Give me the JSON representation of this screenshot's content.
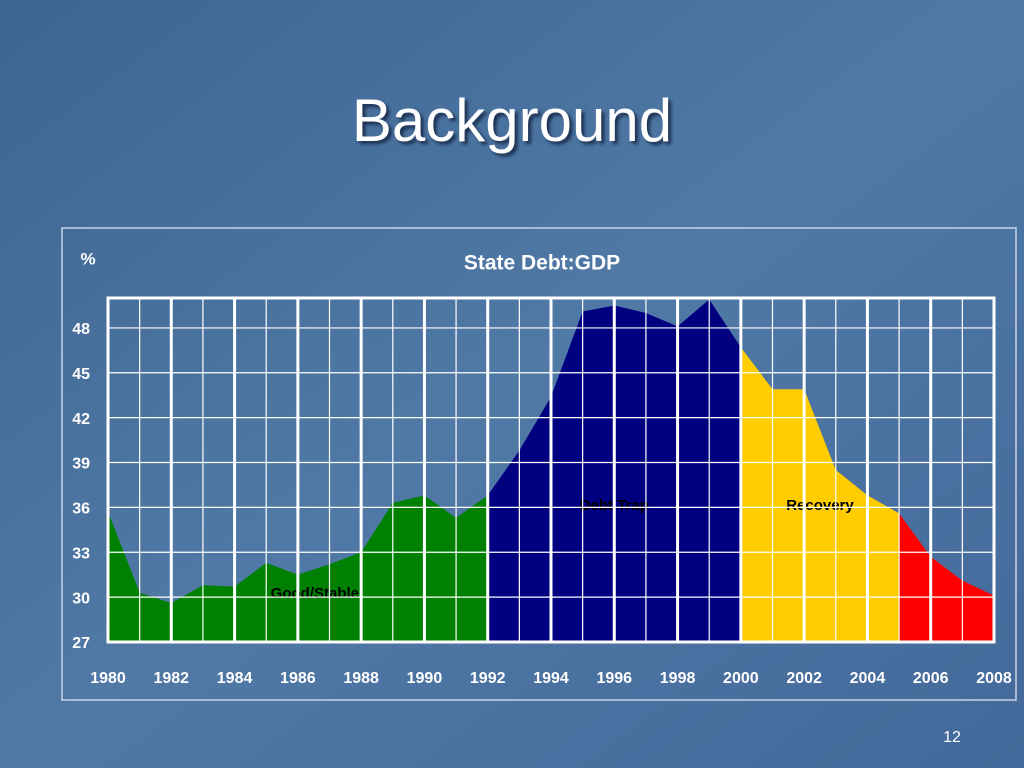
{
  "slide": {
    "title": "Background",
    "page_number": "12"
  },
  "chart_data": {
    "type": "area",
    "title": "State Debt:GDP",
    "y_label": "%",
    "x": [
      1980,
      1981,
      1982,
      1983,
      1984,
      1985,
      1986,
      1987,
      1988,
      1989,
      1990,
      1991,
      1992,
      1993,
      1994,
      1995,
      1996,
      1997,
      1998,
      1999,
      2000,
      2001,
      2002,
      2003,
      2004,
      2005,
      2006,
      2007,
      2008
    ],
    "values": [
      35.7,
      30.3,
      29.6,
      30.8,
      30.7,
      32.3,
      31.5,
      32.2,
      33.0,
      36.3,
      36.8,
      35.3,
      36.8,
      39.8,
      43.4,
      49.1,
      49.5,
      49.0,
      48.1,
      49.9,
      46.7,
      43.9,
      43.9,
      38.5,
      36.8,
      35.6,
      32.7,
      31.1,
      30.1
    ],
    "regions": [
      {
        "label": "Good/Stable",
        "color": "#008000",
        "start": 1980,
        "end": 1992
      },
      {
        "label": "Debt Trap",
        "color": "#000080",
        "start": 1992,
        "end": 2000
      },
      {
        "label": "Recovery",
        "color": "#ffcc00",
        "start": 2000,
        "end": 2005
      },
      {
        "color": "#ff0000",
        "start": 2005,
        "end": 2008
      }
    ],
    "xlim": [
      1980,
      2008
    ],
    "xticks": [
      1980,
      1982,
      1984,
      1986,
      1988,
      1990,
      1992,
      1994,
      1996,
      1998,
      2000,
      2002,
      2004,
      2006,
      2008
    ],
    "ylim": [
      27,
      50
    ],
    "yticks": [
      27,
      30,
      33,
      36,
      39,
      42,
      45,
      48
    ],
    "grid": true
  }
}
